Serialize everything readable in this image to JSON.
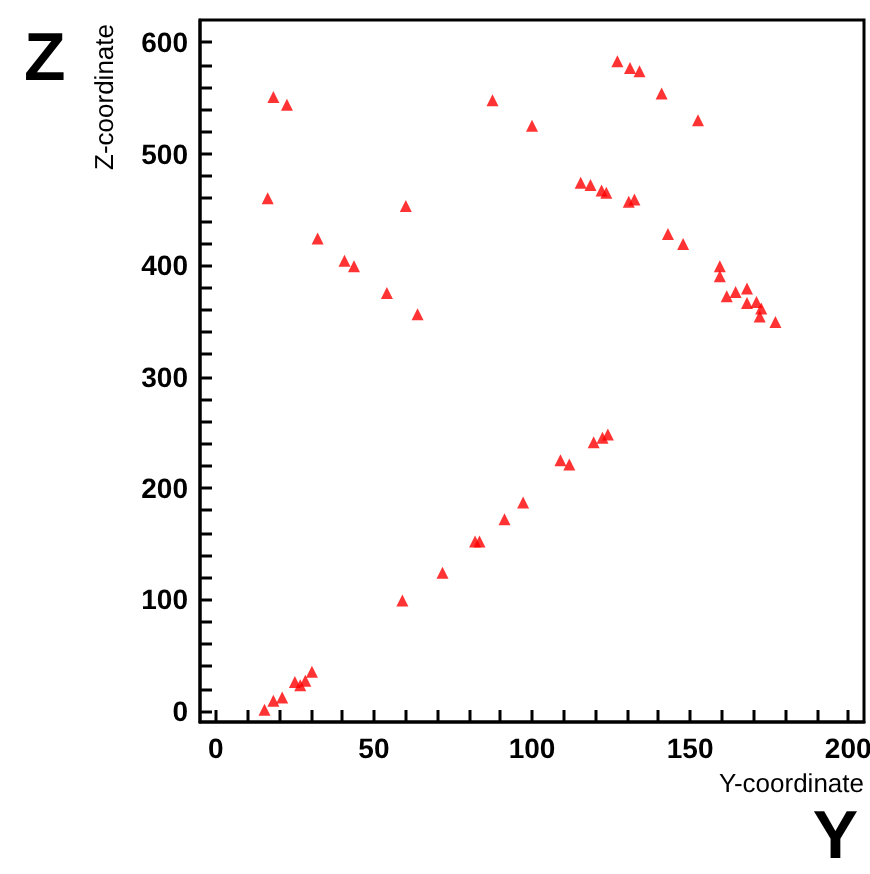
{
  "chart_data": {
    "type": "scatter",
    "xlabel": "Y-coordinate",
    "ylabel": "Z-coordinate",
    "annotations": [
      "Z",
      "Y"
    ],
    "x": [
      18.2,
      22.5,
      16.4,
      32.2,
      40.7,
      43.7,
      54.1,
      60.1,
      63.8,
      127,
      131,
      134,
      141,
      152.5,
      87.5,
      100,
      115.4,
      118.5,
      122,
      123.5,
      130.6,
      132.4,
      143,
      147.8,
      159.4,
      159.4,
      161.6,
      164.4,
      168,
      168,
      171,
      172.5,
      172,
      177,
      15.4,
      18.2,
      21,
      25,
      26.7,
      28.3,
      30.4,
      59,
      71.7,
      82,
      83.4,
      91.3,
      97.2,
      109,
      111.8,
      119.5,
      122.3,
      124
    ],
    "values": [
      551,
      544,
      460,
      424,
      404,
      399,
      375,
      453,
      356,
      583,
      577,
      574,
      554,
      530,
      548,
      525,
      474,
      472,
      467,
      465,
      457,
      459,
      428,
      419,
      399,
      390,
      372,
      376,
      379,
      366,
      367,
      361,
      354,
      349,
      1,
      9,
      12,
      26,
      23,
      27,
      35,
      99,
      124,
      152,
      152,
      172,
      187,
      225,
      221,
      241,
      245,
      248
    ],
    "color": "#ff0000",
    "marker": "triangle",
    "grid": false,
    "xlim": [
      -5,
      205
    ],
    "ylim": [
      -10,
      620
    ],
    "xticks": [
      0,
      {
        "value": 10,
        "label": null
      },
      {
        "value": 20,
        "label": null
      },
      {
        "value": 30,
        "label": null
      },
      {
        "value": 40,
        "label": null
      },
      50,
      {
        "value": 60,
        "label": null
      },
      {
        "value": 70,
        "label": null
      },
      {
        "value": 80,
        "label": null
      },
      {
        "value": 90,
        "label": null
      },
      100,
      {
        "value": 110,
        "label": null
      },
      {
        "value": 120,
        "label": null
      },
      {
        "value": 130,
        "label": null
      },
      {
        "value": 140,
        "label": null
      },
      150,
      {
        "value": 160,
        "label": null
      },
      {
        "value": 170,
        "label": null
      },
      {
        "value": 180,
        "label": null
      },
      {
        "value": 190,
        "label": null
      },
      200
    ],
    "yticks": [
      0,
      {
        "value": 20,
        "label": null
      },
      {
        "value": 40,
        "label": null
      },
      {
        "value": 60,
        "label": null
      },
      {
        "value": 80,
        "label": null
      },
      100,
      {
        "value": 120,
        "label": null
      },
      {
        "value": 140,
        "label": null
      },
      {
        "value": 160,
        "label": null
      },
      {
        "value": 180,
        "label": null
      },
      200,
      {
        "value": 220,
        "label": null
      },
      {
        "value": 240,
        "label": null
      },
      {
        "value": 260,
        "label": null
      },
      {
        "value": 280,
        "label": null
      },
      300,
      {
        "value": 320,
        "label": null
      },
      {
        "value": 340,
        "label": null
      },
      {
        "value": 360,
        "label": null
      },
      {
        "value": 380,
        "label": null
      },
      400,
      {
        "value": 420,
        "label": null
      },
      {
        "value": 440,
        "label": null
      },
      {
        "value": 460,
        "label": null
      },
      {
        "value": 480,
        "label": null
      },
      500,
      {
        "value": 520,
        "label": null
      },
      {
        "value": 540,
        "label": null
      },
      {
        "value": 560,
        "label": null
      },
      {
        "value": 580,
        "label": null
      },
      600
    ]
  }
}
